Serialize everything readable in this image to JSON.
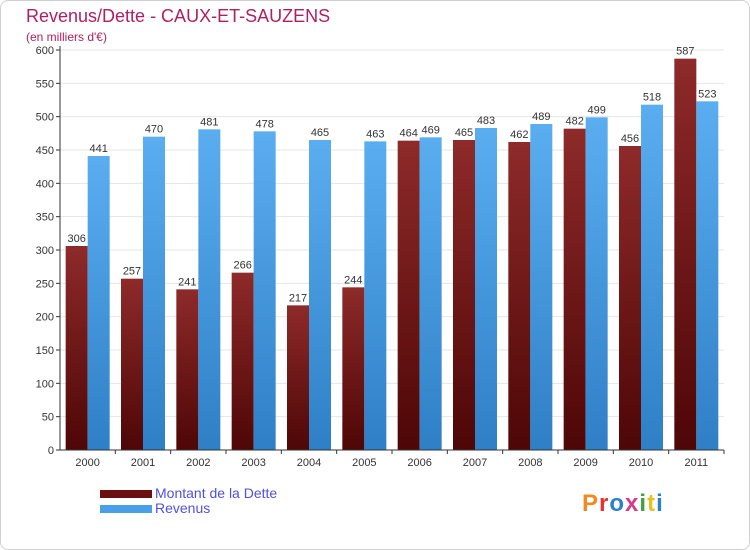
{
  "header": {
    "title": "Revenus/Dette - CAUX-ET-SAUZENS",
    "subtitle": "(en milliers d'€)"
  },
  "legend": {
    "items": [
      {
        "label": "Montant de la Dette",
        "color": "#7a1a1a"
      },
      {
        "label": "Revenus",
        "color": "#4aa0e8"
      }
    ]
  },
  "brand": {
    "logo_text": "Proxiti",
    "letter_colors": [
      "#f08a24",
      "#e83030",
      "#2a7fd0",
      "#d83a8a",
      "#3fa23f",
      "#e8c020",
      "#2a7fd0"
    ]
  },
  "chart_data": {
    "type": "bar",
    "title": "Revenus/Dette - CAUX-ET-SAUZENS",
    "subtitle": "(en milliers d'€)",
    "xlabel": "",
    "ylabel": "",
    "ylim": [
      0,
      600
    ],
    "yticks": [
      0,
      50,
      100,
      150,
      200,
      250,
      300,
      350,
      400,
      450,
      500,
      550,
      600
    ],
    "grid": true,
    "legend_position": "bottom-left",
    "categories": [
      "2000",
      "2001",
      "2002",
      "2003",
      "2004",
      "2005",
      "2006",
      "2007",
      "2008",
      "2009",
      "2010",
      "2011"
    ],
    "series": [
      {
        "name": "Montant de la Dette",
        "color": "#7a1a1a",
        "values": [
          306,
          257,
          241,
          266,
          217,
          244,
          464,
          465,
          462,
          482,
          456,
          587
        ]
      },
      {
        "name": "Revenus",
        "color": "#4aa0e8",
        "values": [
          441,
          470,
          481,
          478,
          465,
          463,
          469,
          483,
          489,
          499,
          518,
          523
        ]
      }
    ]
  }
}
